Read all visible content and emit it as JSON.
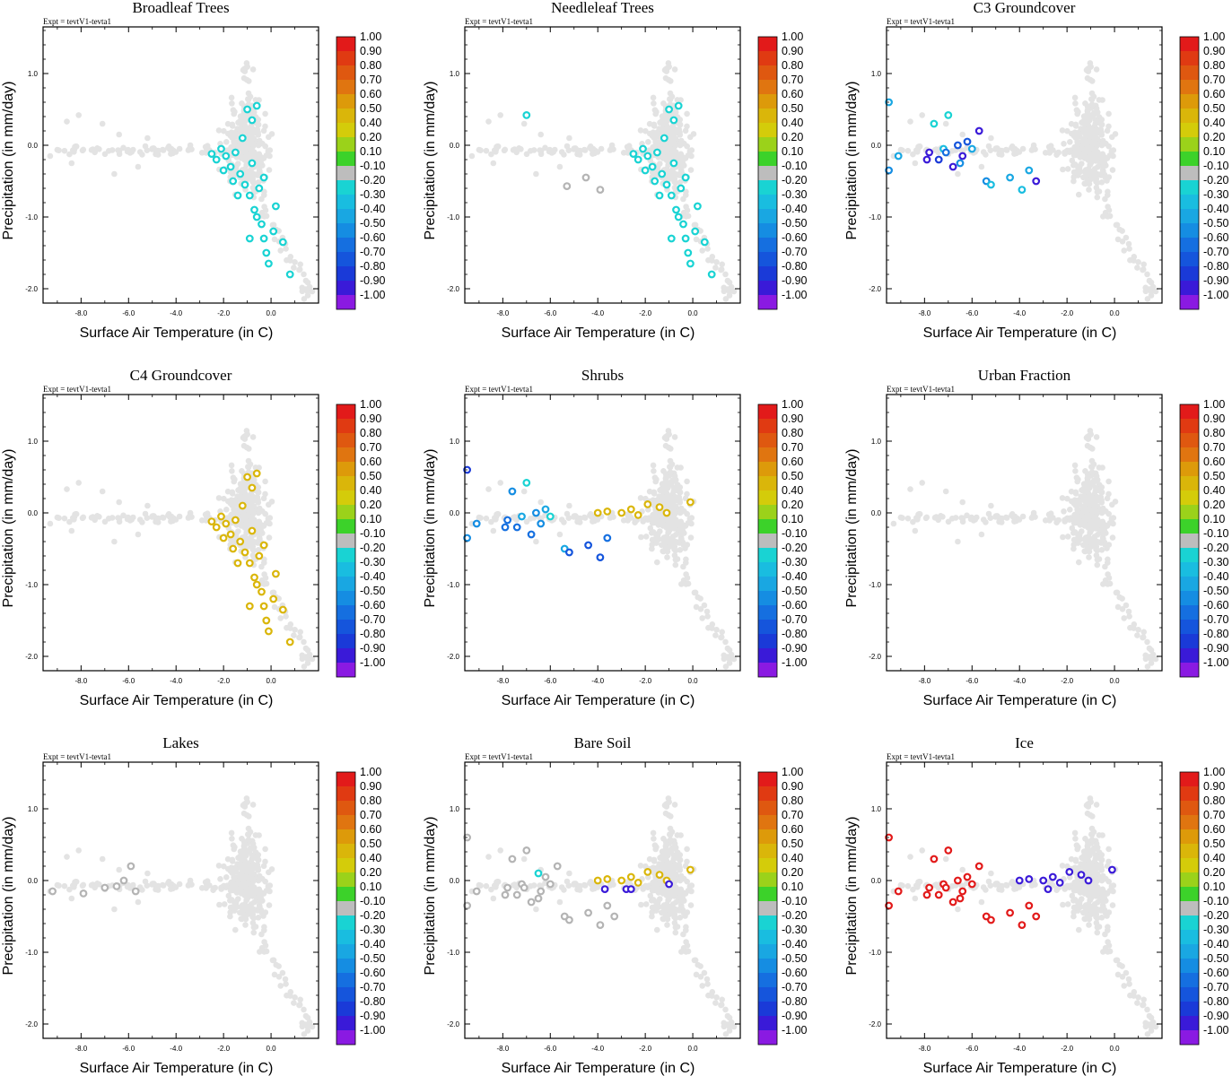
{
  "figure": {
    "expt_label": "Expt = tevtV1-tevta1",
    "xlabel": "Surface Air Temperature (in C)",
    "ylabel": "Precipitation (in mm/day)"
  },
  "colorbar": {
    "labels": [
      "1.00",
      "0.90",
      "0.80",
      "0.70",
      "0.60",
      "0.50",
      "0.40",
      "0.20",
      "0.10",
      "-0.10",
      "-0.20",
      "-0.30",
      "-0.40",
      "-0.50",
      "-0.60",
      "-0.70",
      "-0.80",
      "-0.90",
      "-1.00"
    ],
    "colors": [
      "#e21a1a",
      "#e03a12",
      "#df5810",
      "#e07510",
      "#dd9a0a",
      "#dab60a",
      "#d4cc0a",
      "#9bd21a",
      "#3cd22a",
      "#bdbdbd",
      "#19d3d3",
      "#19bde0",
      "#19a7e2",
      "#158de2",
      "#156fe0",
      "#1555dc",
      "#1a3ad8",
      "#3a1ad8",
      "#8a1ae2"
    ]
  },
  "chart_data": [
    {
      "type": "scatter",
      "title": "Broadleaf Trees",
      "xlabel": "Surface Air Temperature (in C)",
      "ylabel": "Precipitation (in mm/day)",
      "xlim": [
        -9.6,
        2.0
      ],
      "ylim": [
        -2.2,
        1.65
      ],
      "xticks": [
        "-8.0",
        "-6.0",
        "-4.0",
        "-2.0",
        "0.0"
      ],
      "yticks": [
        "1.0",
        "0.0",
        "-1.0",
        "-2.0"
      ],
      "highlight_points": [
        [
          -2.5,
          -0.12
        ],
        [
          -2.3,
          -0.2
        ],
        [
          -2.1,
          -0.05
        ],
        [
          -1.9,
          -0.15
        ],
        [
          -1.7,
          -0.3
        ],
        [
          -1.5,
          -0.1
        ],
        [
          -1.3,
          -0.4
        ],
        [
          -1.1,
          -0.55
        ],
        [
          -0.9,
          -0.7
        ],
        [
          -0.8,
          -0.25
        ],
        [
          -0.7,
          -0.9
        ],
        [
          -0.6,
          -1.0
        ],
        [
          -0.5,
          -0.6
        ],
        [
          -0.4,
          -1.1
        ],
        [
          -0.3,
          -1.3
        ],
        [
          -0.2,
          -1.5
        ],
        [
          -0.1,
          -1.65
        ],
        [
          0.2,
          -0.85
        ],
        [
          0.5,
          -1.35
        ],
        [
          0.8,
          -1.8
        ],
        [
          -1.0,
          0.5
        ],
        [
          -0.8,
          0.35
        ],
        [
          -0.6,
          0.55
        ],
        [
          -1.2,
          0.1
        ],
        [
          -2.0,
          -0.35
        ],
        [
          -1.6,
          -0.5
        ],
        [
          -0.3,
          -0.45
        ],
        [
          0.1,
          -1.2
        ],
        [
          -0.9,
          -1.3
        ],
        [
          -1.4,
          -0.7
        ]
      ],
      "highlight_value": -0.2
    },
    {
      "type": "scatter",
      "title": "Needleleaf Trees",
      "xlabel": "Surface Air Temperature (in C)",
      "ylabel": "Precipitation (in mm/day)",
      "xlim": [
        -9.6,
        2.0
      ],
      "ylim": [
        -2.2,
        1.65
      ],
      "xticks": [
        "-8.0",
        "-6.0",
        "-4.0",
        "-2.0",
        "0.0"
      ],
      "yticks": [
        "1.0",
        "0.0",
        "-1.0",
        "-2.0"
      ],
      "highlight_points": [
        [
          -7.0,
          0.42
        ],
        [
          -2.5,
          -0.12
        ],
        [
          -2.3,
          -0.2
        ],
        [
          -2.1,
          -0.05
        ],
        [
          -1.9,
          -0.15
        ],
        [
          -1.7,
          -0.3
        ],
        [
          -1.5,
          -0.1
        ],
        [
          -1.3,
          -0.4
        ],
        [
          -1.1,
          -0.55
        ],
        [
          -0.9,
          -0.7
        ],
        [
          -0.8,
          -0.25
        ],
        [
          -0.7,
          -0.9
        ],
        [
          -0.6,
          -1.0
        ],
        [
          -0.5,
          -0.6
        ],
        [
          -0.4,
          -1.1
        ],
        [
          -0.3,
          -1.3
        ],
        [
          -0.2,
          -1.5
        ],
        [
          -0.1,
          -1.65
        ],
        [
          0.2,
          -0.85
        ],
        [
          0.5,
          -1.35
        ],
        [
          0.8,
          -1.8
        ],
        [
          -1.0,
          0.5
        ],
        [
          -0.8,
          0.35
        ],
        [
          -0.6,
          0.55
        ],
        [
          -1.2,
          0.1
        ],
        [
          -2.0,
          -0.35
        ],
        [
          -1.6,
          -0.5
        ],
        [
          -0.3,
          -0.45
        ],
        [
          0.1,
          -1.2
        ],
        [
          -0.9,
          -1.3
        ],
        [
          -1.4,
          -0.7
        ]
      ],
      "highlight_value": -0.2,
      "gray_points": [
        [
          -5.3,
          -0.57
        ],
        [
          -4.5,
          -0.45
        ],
        [
          -3.9,
          -0.62
        ]
      ]
    },
    {
      "type": "scatter",
      "title": "C3 Groundcover",
      "xlabel": "Surface Air Temperature (in C)",
      "ylabel": "Precipitation (in mm/day)",
      "xlim": [
        -9.6,
        2.0
      ],
      "ylim": [
        -2.2,
        1.65
      ],
      "xticks": [
        "-8.0",
        "-6.0",
        "-4.0",
        "-2.0",
        "0.0"
      ],
      "yticks": [
        "1.0",
        "0.0",
        "-1.0",
        "-2.0"
      ],
      "points": [
        [
          -9.5,
          0.6,
          -0.4
        ],
        [
          -9.5,
          -0.35,
          -0.5
        ],
        [
          -9.1,
          -0.15,
          -0.4
        ],
        [
          -7.8,
          -0.1,
          -0.9
        ],
        [
          -7.6,
          0.3,
          -0.2
        ],
        [
          -7.4,
          -0.2,
          -0.8
        ],
        [
          -7.2,
          -0.05,
          -0.3
        ],
        [
          -7.0,
          0.42,
          -0.2
        ],
        [
          -6.8,
          -0.3,
          -0.9
        ],
        [
          -6.6,
          0.0,
          -0.7
        ],
        [
          -6.4,
          -0.15,
          -0.9
        ],
        [
          -6.2,
          0.05,
          -0.7
        ],
        [
          -6.0,
          -0.05,
          -0.4
        ],
        [
          -5.7,
          0.2,
          -0.9
        ],
        [
          -5.4,
          -0.5,
          -0.5
        ],
        [
          -5.2,
          -0.55,
          -0.3
        ],
        [
          -4.4,
          -0.45,
          -0.4
        ],
        [
          -3.9,
          -0.62,
          -0.3
        ],
        [
          -3.6,
          -0.35,
          -0.4
        ],
        [
          -3.3,
          -0.5,
          -0.9
        ],
        [
          -7.9,
          -0.2,
          -0.9
        ],
        [
          -6.5,
          -0.25,
          -0.5
        ],
        [
          -7.1,
          -0.1,
          -0.6
        ]
      ]
    },
    {
      "type": "scatter",
      "title": "C4 Groundcover",
      "xlabel": "Surface Air Temperature (in C)",
      "ylabel": "Precipitation (in mm/day)",
      "xlim": [
        -9.6,
        2.0
      ],
      "ylim": [
        -2.2,
        1.65
      ],
      "xticks": [
        "-8.0",
        "-6.0",
        "-4.0",
        "-2.0",
        "0.0"
      ],
      "yticks": [
        "1.0",
        "0.0",
        "-1.0",
        "-2.0"
      ],
      "highlight_points": [
        [
          -2.5,
          -0.12
        ],
        [
          -2.3,
          -0.2
        ],
        [
          -2.1,
          -0.05
        ],
        [
          -1.9,
          -0.15
        ],
        [
          -1.7,
          -0.3
        ],
        [
          -1.5,
          -0.1
        ],
        [
          -1.3,
          -0.4
        ],
        [
          -1.1,
          -0.55
        ],
        [
          -0.9,
          -0.7
        ],
        [
          -0.8,
          -0.25
        ],
        [
          -0.7,
          -0.9
        ],
        [
          -0.6,
          -1.0
        ],
        [
          -0.5,
          -0.6
        ],
        [
          -0.4,
          -1.1
        ],
        [
          -0.3,
          -1.3
        ],
        [
          -0.2,
          -1.5
        ],
        [
          -0.1,
          -1.65
        ],
        [
          0.2,
          -0.85
        ],
        [
          0.5,
          -1.35
        ],
        [
          0.8,
          -1.8
        ],
        [
          -1.0,
          0.5
        ],
        [
          -0.8,
          0.35
        ],
        [
          -0.6,
          0.55
        ],
        [
          -1.2,
          0.1
        ],
        [
          -2.0,
          -0.35
        ],
        [
          -1.6,
          -0.5
        ],
        [
          -0.3,
          -0.45
        ],
        [
          0.1,
          -1.2
        ],
        [
          -0.9,
          -1.3
        ],
        [
          -1.4,
          -0.7
        ]
      ],
      "highlight_value": 0.5
    },
    {
      "type": "scatter",
      "title": "Shrubs",
      "xlabel": "Surface Air Temperature (in C)",
      "ylabel": "Precipitation (in mm/day)",
      "xlim": [
        -9.6,
        2.0
      ],
      "ylim": [
        -2.2,
        1.65
      ],
      "xticks": [
        "-8.0",
        "-6.0",
        "-4.0",
        "-2.0",
        "0.0"
      ],
      "yticks": [
        "1.0",
        "0.0",
        "-1.0",
        "-2.0"
      ],
      "points": [
        [
          -9.5,
          0.6,
          -0.8
        ],
        [
          -9.5,
          -0.35,
          -0.5
        ],
        [
          -9.1,
          -0.15,
          -0.5
        ],
        [
          -7.8,
          -0.1,
          -0.6
        ],
        [
          -7.6,
          0.3,
          -0.5
        ],
        [
          -7.4,
          -0.2,
          -0.6
        ],
        [
          -7.2,
          -0.05,
          -0.4
        ],
        [
          -7.0,
          0.42,
          -0.2
        ],
        [
          -6.8,
          -0.3,
          -0.6
        ],
        [
          -6.6,
          0.0,
          -0.5
        ],
        [
          -6.4,
          -0.15,
          -0.5
        ],
        [
          -6.2,
          0.05,
          -0.4
        ],
        [
          -6.0,
          -0.05,
          -0.2
        ],
        [
          -5.4,
          -0.5,
          -0.4
        ],
        [
          -5.2,
          -0.55,
          -0.7
        ],
        [
          -4.4,
          -0.45,
          -0.7
        ],
        [
          -3.9,
          -0.62,
          -0.7
        ],
        [
          -3.6,
          -0.35,
          -0.6
        ],
        [
          -4.0,
          0.0,
          0.5
        ],
        [
          -3.6,
          0.02,
          0.5
        ],
        [
          -3.0,
          0.0,
          0.5
        ],
        [
          -2.6,
          0.05,
          0.5
        ],
        [
          -2.3,
          -0.03,
          0.5
        ],
        [
          -1.9,
          0.12,
          0.5
        ],
        [
          -1.4,
          0.08,
          0.5
        ],
        [
          -1.1,
          0.0,
          0.5
        ],
        [
          -0.1,
          0.15,
          0.5
        ],
        [
          -7.9,
          -0.2,
          -0.6
        ]
      ]
    },
    {
      "type": "scatter",
      "title": "Urban Fraction",
      "xlabel": "Surface Air Temperature (in C)",
      "ylabel": "Precipitation (in mm/day)",
      "xlim": [
        -9.6,
        2.0
      ],
      "ylim": [
        -2.2,
        1.65
      ],
      "xticks": [
        "-8.0",
        "-6.0",
        "-4.0",
        "-2.0",
        "0.0"
      ],
      "yticks": [
        "1.0",
        "0.0",
        "-1.0",
        "-2.0"
      ],
      "points": []
    },
    {
      "type": "scatter",
      "title": "Lakes",
      "xlabel": "Surface Air Temperature (in C)",
      "ylabel": "Precipitation (in mm/day)",
      "xlim": [
        -9.6,
        2.0
      ],
      "ylim": [
        -2.2,
        1.65
      ],
      "xticks": [
        "-8.0",
        "-6.0",
        "-4.0",
        "-2.0",
        "0.0"
      ],
      "yticks": [
        "1.0",
        "0.0",
        "-1.0",
        "-2.0"
      ],
      "gray_points": [
        [
          -9.2,
          -0.15
        ],
        [
          -7.9,
          -0.18
        ],
        [
          -7.0,
          -0.1
        ],
        [
          -6.5,
          -0.08
        ],
        [
          -6.2,
          0.0
        ],
        [
          -5.9,
          0.2
        ],
        [
          -5.7,
          -0.15
        ]
      ]
    },
    {
      "type": "scatter",
      "title": "Bare Soil",
      "xlabel": "Surface Air Temperature (in C)",
      "ylabel": "Precipitation (in mm/day)",
      "xlim": [
        -9.6,
        2.0
      ],
      "ylim": [
        -2.2,
        1.65
      ],
      "xticks": [
        "-8.0",
        "-6.0",
        "-4.0",
        "-2.0",
        "0.0"
      ],
      "yticks": [
        "1.0",
        "0.0",
        "-1.0",
        "-2.0"
      ],
      "points": [
        [
          -4.0,
          0.0,
          0.5
        ],
        [
          -3.6,
          0.02,
          0.5
        ],
        [
          -3.0,
          0.0,
          0.5
        ],
        [
          -2.6,
          0.05,
          0.5
        ],
        [
          -2.3,
          -0.03,
          0.5
        ],
        [
          -1.9,
          0.12,
          0.5
        ],
        [
          -1.4,
          0.08,
          0.5
        ],
        [
          -1.1,
          0.0,
          0.5
        ],
        [
          -0.1,
          0.15,
          0.5
        ],
        [
          -3.7,
          -0.12,
          -0.9
        ],
        [
          -2.8,
          -0.12,
          -0.9
        ],
        [
          -2.6,
          -0.12,
          -0.9
        ],
        [
          -1.0,
          -0.05,
          -0.9
        ]
      ],
      "gray_points": [
        [
          -9.5,
          0.6
        ],
        [
          -9.5,
          -0.35
        ],
        [
          -9.1,
          -0.15
        ],
        [
          -7.8,
          -0.1
        ],
        [
          -7.6,
          0.3
        ],
        [
          -7.4,
          -0.2
        ],
        [
          -7.2,
          -0.05
        ],
        [
          -7.0,
          0.42
        ],
        [
          -6.8,
          -0.3
        ],
        [
          -6.4,
          -0.15
        ],
        [
          -6.2,
          0.05
        ],
        [
          -6.0,
          -0.05
        ],
        [
          -5.7,
          0.2
        ],
        [
          -5.4,
          -0.5
        ],
        [
          -5.2,
          -0.55
        ],
        [
          -4.4,
          -0.45
        ],
        [
          -3.9,
          -0.62
        ],
        [
          -3.6,
          -0.35
        ],
        [
          -3.3,
          -0.5
        ],
        [
          -7.9,
          -0.2
        ],
        [
          -6.5,
          -0.25
        ],
        [
          -7.1,
          -0.1
        ]
      ],
      "cyan_points": [
        [
          -6.5,
          0.1
        ]
      ]
    },
    {
      "type": "scatter",
      "title": "Ice",
      "xlabel": "Surface Air Temperature (in C)",
      "ylabel": "Precipitation (in mm/day)",
      "xlim": [
        -9.6,
        2.0
      ],
      "ylim": [
        -2.2,
        1.65
      ],
      "xticks": [
        "-8.0",
        "-6.0",
        "-4.0",
        "-2.0",
        "0.0"
      ],
      "yticks": [
        "1.0",
        "0.0",
        "-1.0",
        "-2.0"
      ],
      "points": [
        [
          -9.5,
          0.6,
          1.0
        ],
        [
          -9.5,
          -0.35,
          1.0
        ],
        [
          -9.1,
          -0.15,
          1.0
        ],
        [
          -7.8,
          -0.1,
          1.0
        ],
        [
          -7.6,
          0.3,
          1.0
        ],
        [
          -7.4,
          -0.2,
          1.0
        ],
        [
          -7.2,
          -0.05,
          1.0
        ],
        [
          -7.0,
          0.42,
          1.0
        ],
        [
          -6.8,
          -0.3,
          1.0
        ],
        [
          -6.6,
          0.0,
          1.0
        ],
        [
          -6.4,
          -0.15,
          1.0
        ],
        [
          -6.2,
          0.05,
          1.0
        ],
        [
          -6.0,
          -0.05,
          1.0
        ],
        [
          -5.7,
          0.2,
          1.0
        ],
        [
          -5.4,
          -0.5,
          1.0
        ],
        [
          -5.2,
          -0.55,
          1.0
        ],
        [
          -4.4,
          -0.45,
          1.0
        ],
        [
          -3.9,
          -0.62,
          1.0
        ],
        [
          -3.6,
          -0.35,
          1.0
        ],
        [
          -3.3,
          -0.5,
          1.0
        ],
        [
          -7.9,
          -0.2,
          1.0
        ],
        [
          -6.5,
          -0.25,
          1.0
        ],
        [
          -7.1,
          -0.1,
          1.0
        ],
        [
          -4.0,
          0.0,
          -0.9
        ],
        [
          -3.6,
          0.02,
          -0.9
        ],
        [
          -3.0,
          0.0,
          -0.9
        ],
        [
          -2.6,
          0.05,
          -0.9
        ],
        [
          -2.3,
          -0.03,
          -0.9
        ],
        [
          -1.9,
          0.12,
          -0.9
        ],
        [
          -1.4,
          0.08,
          -0.9
        ],
        [
          -1.1,
          0.0,
          -0.9
        ],
        [
          -0.1,
          0.15,
          -0.9
        ],
        [
          -2.8,
          -0.12,
          -0.9
        ]
      ]
    }
  ]
}
